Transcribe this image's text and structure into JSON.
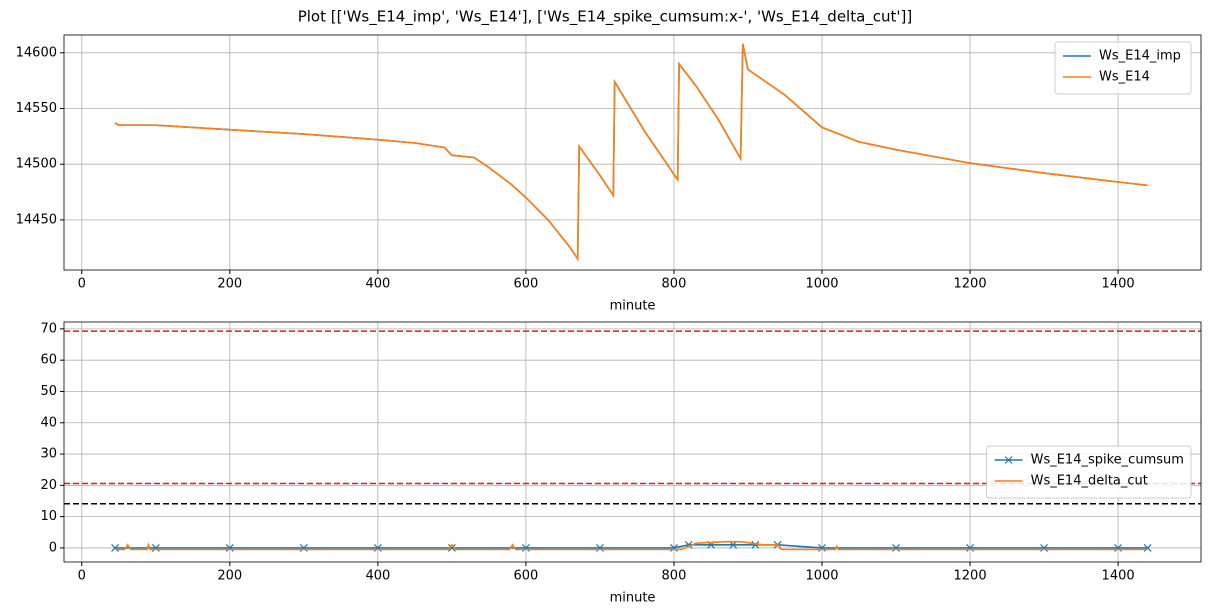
{
  "title": "Plot [['Ws_E14_imp', 'Ws_E14'], ['Ws_E14_spike_cumsum:x-', 'Ws_E14_delta_cut']]",
  "chart_data": [
    {
      "type": "line",
      "x_label": "minute",
      "x": [
        45,
        50,
        100,
        200,
        300,
        400,
        450,
        490,
        500,
        530,
        550,
        580,
        600,
        630,
        660,
        670,
        672,
        700,
        718,
        720,
        760,
        805,
        807,
        830,
        860,
        890,
        893,
        900,
        950,
        1000,
        1050,
        1100,
        1200,
        1300,
        1400,
        1440
      ],
      "series": [
        {
          "name": "Ws_E14_imp",
          "color": "#1f77b4",
          "values": [
            14537,
            14535,
            14535,
            14531,
            14527,
            14522,
            14519,
            14515,
            14508,
            14506,
            14497,
            14482,
            14470,
            14450,
            14425,
            14415,
            14516,
            14490,
            14472,
            14574,
            14530,
            14486,
            14590,
            14570,
            14540,
            14505,
            14608,
            14585,
            14562,
            14533,
            14520,
            14513,
            14501,
            14492,
            14484,
            14481
          ]
        },
        {
          "name": "Ws_E14",
          "color": "#ff7f0e",
          "values": [
            14537,
            14535,
            14535,
            14531,
            14527,
            14522,
            14519,
            14515,
            14508,
            14506,
            14497,
            14482,
            14470,
            14450,
            14425,
            14415,
            14516,
            14490,
            14472,
            14574,
            14530,
            14486,
            14590,
            14570,
            14540,
            14505,
            14608,
            14585,
            14562,
            14533,
            14520,
            14513,
            14501,
            14492,
            14484,
            14481
          ]
        }
      ],
      "xlim": [
        -24,
        1512
      ],
      "xticks": [
        0,
        200,
        400,
        600,
        800,
        1000,
        1200,
        1400
      ],
      "ylim": [
        14405,
        14616
      ],
      "yticks": [
        14450,
        14500,
        14550,
        14600
      ],
      "grid": true,
      "legend": "upper right"
    },
    {
      "type": "line",
      "x_label": "minute",
      "series": [
        {
          "name": "Ws_E14_spike_cumsum",
          "color": "#1f77b4",
          "marker": "x",
          "x": [
            45,
            100,
            200,
            300,
            400,
            500,
            600,
            700,
            800,
            820,
            850,
            880,
            910,
            940,
            1000,
            1100,
            1200,
            1300,
            1400,
            1440
          ],
          "values": [
            0,
            0,
            0,
            0,
            0,
            0,
            0,
            0,
            0,
            1,
            1,
            1,
            1,
            1,
            0,
            0,
            0,
            0,
            0,
            0
          ]
        },
        {
          "name": "Ws_E14_delta_cut",
          "color": "#ff7f0e",
          "x": [
            45,
            58,
            62,
            66,
            88,
            90,
            92,
            495,
            500,
            505,
            578,
            582,
            586,
            810,
            830,
            870,
            890,
            920,
            940,
            945,
            1018,
            1020,
            1022,
            1440
          ],
          "values": [
            -0.5,
            -0.5,
            1,
            -0.5,
            -0.5,
            1,
            -0.5,
            -0.5,
            1,
            -0.5,
            -0.5,
            1,
            -0.5,
            -0.5,
            1.5,
            2,
            2,
            1,
            1,
            -0.5,
            -0.5,
            0.5,
            -0.5,
            -0.5
          ]
        }
      ],
      "hlines": [
        {
          "value": 69.3,
          "color": "#e41a1c"
        },
        {
          "value": 20.6,
          "color": "#e41a1c"
        },
        {
          "value": 14.1,
          "color": "#000000"
        }
      ],
      "xlim": [
        -24,
        1512
      ],
      "xticks": [
        0,
        200,
        400,
        600,
        800,
        1000,
        1200,
        1400
      ],
      "ylim": [
        -4.5,
        72.2
      ],
      "yticks": [
        0,
        10,
        20,
        30,
        40,
        50,
        60,
        70
      ],
      "grid": true,
      "legend": "center right"
    }
  ]
}
